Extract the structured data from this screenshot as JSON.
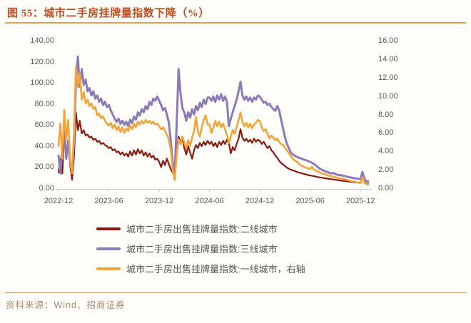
{
  "figure": {
    "title": "图 55：城市二手房挂牌量指数下降（%）",
    "source": "资料来源：Wind、招商证券"
  },
  "colors": {
    "title_text": "#c14e20",
    "divider_rule": "#e59f50",
    "axis_text": "#595959",
    "axis_line": "#c9c9c9",
    "source_text": "#b08a6e",
    "series_tier2": "#8b1a10",
    "series_tier3": "#8b7ab8",
    "series_tier1": "#f2a43a"
  },
  "chart_data": {
    "type": "line",
    "title": "城市二手房挂牌量指数下降（%）",
    "grid": false,
    "legend_position": "bottom",
    "x_axis": {
      "tick_labels": [
        "2022-12",
        "2023-06",
        "2023-12",
        "2024-06",
        "2024-12",
        "2025-06",
        "2025-12"
      ],
      "tick_week_positions": [
        0,
        26,
        52,
        78,
        104,
        130,
        156
      ],
      "total_weeks": 160,
      "unit": "weekly observations from 2022-12"
    },
    "left_axis": {
      "min": 0,
      "max": 140,
      "step": 20,
      "tick_labels": [
        "0.00",
        "20.00",
        "40.00",
        "60.00",
        "80.00",
        "100.00",
        "120.00",
        "140.00"
      ]
    },
    "right_axis": {
      "min": 0,
      "max": 16,
      "step": 2,
      "tick_labels": [
        "0.00",
        "2.00",
        "4.00",
        "6.00",
        "8.00",
        "10.00",
        "12.00",
        "14.00",
        "16.00"
      ]
    },
    "series": [
      {
        "name": "城市二手房出售挂牌量指数:二线城市",
        "axis": "left",
        "color": "#8b1a10",
        "width": 2.2,
        "values": [
          15,
          28,
          14,
          53,
          30,
          42,
          22,
          8,
          30,
          72,
          55,
          64,
          52,
          55,
          50,
          51,
          48,
          49,
          46,
          47,
          44,
          45,
          42,
          43,
          41,
          40,
          38,
          39,
          36,
          37,
          34,
          35,
          32,
          34,
          31,
          33,
          30,
          35,
          31,
          36,
          32,
          37,
          33,
          36,
          31,
          34,
          30,
          33,
          29,
          31,
          27,
          28,
          25,
          20,
          26,
          22,
          28,
          23,
          18,
          15,
          13,
          35,
          49,
          44,
          47,
          38,
          32,
          40,
          34,
          28,
          36,
          41,
          38,
          43,
          40,
          44,
          41,
          45,
          42,
          44,
          40,
          43,
          39,
          44,
          41,
          45,
          42,
          46,
          43,
          33,
          39,
          36,
          42,
          47,
          56,
          48,
          45,
          47,
          44,
          46,
          43,
          47,
          44,
          46,
          45,
          42,
          44,
          41,
          38,
          40,
          36,
          34,
          31,
          29,
          26,
          24,
          22.5,
          21,
          19.5,
          18.5,
          17.5,
          17,
          16.5,
          15.5,
          15,
          14.5,
          14,
          13.5,
          13,
          12.5,
          12.2,
          11.8,
          11.4,
          11,
          10.6,
          10.3,
          10,
          9.7,
          9.4,
          9.1,
          8.8,
          8.6,
          8.3,
          8,
          7.8,
          7.5,
          7.2,
          7,
          6.8,
          6.5,
          6.3,
          6.1,
          5.9,
          5.7,
          5.5,
          5.4,
          5.2,
          11,
          6,
          4.5,
          4
        ]
      },
      {
        "name": "城市二手房出售挂牌量指数:三线城市",
        "axis": "left",
        "color": "#8b7ab8",
        "width": 3,
        "values": [
          31,
          14,
          40,
          55,
          28,
          45,
          25,
          16,
          45,
          100,
          125,
          96,
          113,
          98,
          103,
          92,
          95,
          88,
          92,
          85,
          88,
          82,
          85,
          79,
          82,
          77,
          79,
          74,
          70,
          66,
          63,
          66,
          61,
          64,
          60,
          63,
          59,
          65,
          62,
          68,
          65,
          72,
          69,
          75,
          72,
          78,
          75,
          82,
          79,
          85,
          83,
          87,
          83,
          79,
          74,
          76,
          70,
          62,
          45,
          25,
          14,
          60,
          113,
          90,
          76,
          72,
          64,
          72,
          67,
          75,
          70,
          78,
          74,
          81,
          77,
          84,
          80,
          86,
          86,
          83,
          87,
          82,
          88,
          84,
          89,
          83,
          87,
          82,
          59,
          66,
          72,
          78,
          84,
          92,
          101,
          88,
          84,
          87,
          83,
          86,
          82,
          86,
          84,
          88,
          87,
          84,
          81,
          82,
          79,
          80,
          77,
          75,
          73.5,
          78,
          74,
          65,
          57,
          48,
          42,
          38,
          34,
          32,
          31,
          30,
          29,
          28.5,
          27.7,
          27,
          26.5,
          25.7,
          25,
          24,
          23,
          21.5,
          20,
          18.5,
          17.5,
          16.8,
          16,
          15.3,
          14.7,
          14,
          14.5,
          13.5,
          12.8,
          12.3,
          12.5,
          11.8,
          11.5,
          11,
          10.5,
          10.2,
          9.8,
          9.5,
          9.2,
          9,
          8.8,
          15.5,
          9,
          7,
          6.2
        ]
      },
      {
        "name": "城市二手房出售挂牌量指数:一线城市，右轴",
        "axis": "right",
        "color": "#f2a43a",
        "width": 2.6,
        "values": [
          4.6,
          7,
          3.2,
          8.5,
          5.2,
          7.4,
          3,
          1.6,
          6,
          13.2,
          11,
          12.5,
          9.6,
          10.4,
          9.2,
          9.6,
          8.9,
          9.2,
          8.6,
          8.8,
          7.9,
          8.1,
          7.6,
          7.8,
          7.3,
          7,
          6.8,
          7.1,
          6.5,
          6.9,
          6.3,
          6.7,
          6.1,
          6.6,
          6,
          6.5,
          6.2,
          6.8,
          6.4,
          7,
          6.6,
          7.2,
          6.9,
          7.3,
          7,
          7.4,
          7.1,
          7.3,
          7,
          7.2,
          6.9,
          7,
          6.7,
          6.4,
          6.6,
          6.2,
          5.8,
          5.3,
          4.2,
          2,
          0.9,
          3.5,
          5.3,
          4.8,
          5.6,
          4.9,
          4.3,
          5.2,
          4.6,
          5.5,
          6.2,
          7.7,
          6.2,
          5.6,
          6.6,
          7.4,
          7.9,
          6.9,
          6.9,
          6,
          6.6,
          7.3,
          6.7,
          7.2,
          6.6,
          7,
          6.4,
          5.8,
          4.9,
          5.6,
          6.3,
          5.9,
          6.6,
          7.4,
          8.2,
          7.2,
          6.7,
          7.1,
          6.6,
          7,
          6.5,
          6.9,
          7.1,
          7.4,
          7.3,
          6.6,
          6.2,
          6.4,
          5.9,
          5.4,
          5.7,
          5.5,
          5.2,
          5.4,
          5,
          4.8,
          4.7,
          4.4,
          4.1,
          3.8,
          3.5,
          3.2,
          3,
          2.9,
          2.7,
          2.5,
          2.4,
          2.3,
          2.2,
          2.15,
          2.1,
          2.3,
          2,
          1.9,
          1.8,
          1.7,
          1.6,
          1.55,
          1.5,
          1.4,
          1.35,
          1.3,
          1.25,
          1.2,
          1.15,
          1.1,
          1.05,
          1,
          0.95,
          0.9,
          0.85,
          0.8,
          0.75,
          0.7,
          0.65,
          0.6,
          0.55,
          1.2,
          0.6,
          0.45,
          0.4
        ]
      }
    ]
  }
}
